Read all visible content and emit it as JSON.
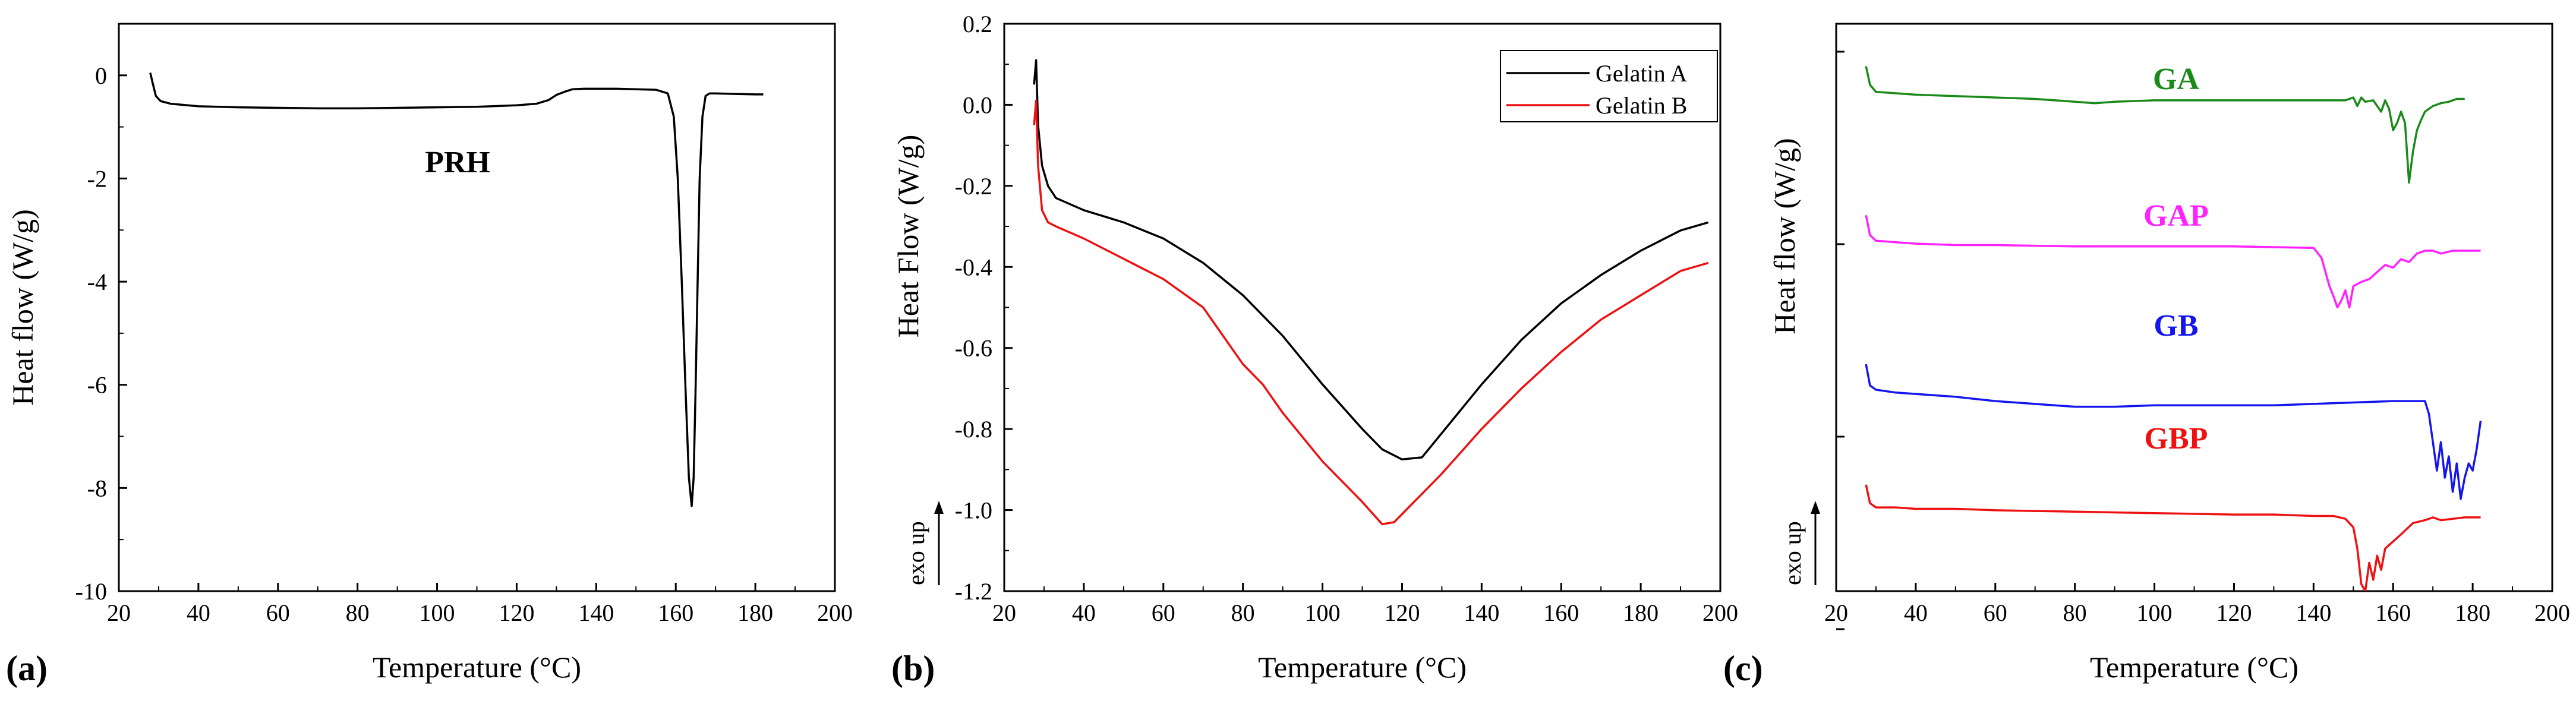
{
  "chart_data": [
    {
      "id": "a",
      "type": "line",
      "panel_label": "(a)",
      "annotation": "PRH",
      "xlabel": "Temperature (°C)",
      "ylabel": "Heat flow (W/g)",
      "xlim": [
        20,
        200
      ],
      "ylim": [
        -10,
        1
      ],
      "xticks": [
        "20",
        "40",
        "60",
        "80",
        "100",
        "120",
        "140",
        "160",
        "180",
        "200"
      ],
      "yticks": [
        "0",
        "-2",
        "-4",
        "-6",
        "-8",
        "-10"
      ],
      "series": [
        {
          "name": "PRH",
          "color": "#000000",
          "x": [
            27.9,
            28.5,
            29.3,
            30.5,
            33,
            40,
            50,
            60,
            70,
            80,
            90,
            100,
            110,
            120,
            125,
            128,
            130,
            132,
            134,
            137,
            140,
            145,
            150,
            155,
            158,
            159.5,
            160.5,
            161.5,
            162.5,
            163.3,
            164.0,
            164.5,
            165.0,
            165.5,
            166.0,
            166.7,
            167.5,
            168.5,
            170,
            175,
            180,
            182
          ],
          "y": [
            0.05,
            -0.15,
            -0.4,
            -0.5,
            -0.55,
            -0.6,
            -0.62,
            -0.63,
            -0.64,
            -0.64,
            -0.63,
            -0.62,
            -0.61,
            -0.58,
            -0.55,
            -0.48,
            -0.38,
            -0.32,
            -0.27,
            -0.26,
            -0.26,
            -0.26,
            -0.27,
            -0.28,
            -0.35,
            -0.8,
            -2.0,
            -4.0,
            -6.2,
            -7.8,
            -8.35,
            -7.8,
            -6.0,
            -4.0,
            -2.0,
            -0.8,
            -0.4,
            -0.35,
            -0.35,
            -0.36,
            -0.37,
            -0.37
          ]
        }
      ]
    },
    {
      "id": "b",
      "type": "line",
      "panel_label": "(b)",
      "xlabel": "Temperature (°C)",
      "ylabel": "Heat Flow (W/g)",
      "exo_label": "exo up",
      "xlim": [
        20,
        200
      ],
      "ylim": [
        -1.2,
        0.2
      ],
      "xticks": [
        "20",
        "40",
        "60",
        "80",
        "100",
        "120",
        "140",
        "160",
        "180",
        "200"
      ],
      "yticks": [
        "0.2",
        "0.0",
        "-0.2",
        "-0.4",
        "-0.6",
        "-0.8",
        "-1.0",
        "-1.2"
      ],
      "legend": [
        "Gelatin A",
        "Gelatin B"
      ],
      "series": [
        {
          "name": "Gelatin A",
          "color": "#000000",
          "x": [
            27.5,
            28.0,
            28.5,
            29.5,
            31,
            33,
            40,
            50,
            60,
            70,
            80,
            90,
            100,
            110,
            115,
            120,
            125,
            130,
            140,
            150,
            160,
            170,
            180,
            190,
            197
          ],
          "y": [
            0.05,
            0.11,
            -0.05,
            -0.15,
            -0.2,
            -0.23,
            -0.26,
            -0.29,
            -0.33,
            -0.39,
            -0.47,
            -0.57,
            -0.69,
            -0.8,
            -0.85,
            -0.875,
            -0.87,
            -0.81,
            -0.69,
            -0.58,
            -0.49,
            -0.42,
            -0.36,
            -0.31,
            -0.29
          ]
        },
        {
          "name": "Gelatin B",
          "color": "#ee1111",
          "x": [
            27.5,
            28.0,
            28.5,
            29.5,
            31,
            33,
            40,
            50,
            60,
            70,
            75,
            80,
            85,
            90,
            100,
            110,
            115,
            118,
            120,
            130,
            140,
            150,
            160,
            170,
            180,
            190,
            197
          ],
          "y": [
            -0.05,
            0.01,
            -0.15,
            -0.26,
            -0.29,
            -0.3,
            -0.33,
            -0.38,
            -0.43,
            -0.5,
            -0.57,
            -0.64,
            -0.69,
            -0.76,
            -0.88,
            -0.98,
            -1.035,
            -1.03,
            -1.01,
            -0.91,
            -0.8,
            -0.7,
            -0.61,
            -0.53,
            -0.47,
            -0.41,
            -0.39
          ]
        }
      ]
    },
    {
      "id": "c",
      "type": "line",
      "panel_label": "(c)",
      "xlabel": "Temperature (°C)",
      "ylabel": "Heat flow (W/g)",
      "exo_label": "exo up",
      "xlim": [
        20,
        200
      ],
      "ylim": [
        -4,
        0
      ],
      "xticks": [
        "20",
        "40",
        "60",
        "80",
        "100",
        "120",
        "140",
        "160",
        "180",
        "200"
      ],
      "yticks": [],
      "series": [
        {
          "name": "GA",
          "color": "#1a8a1a",
          "x": [
            27.5,
            28.5,
            30,
            35,
            40,
            50,
            60,
            70,
            80,
            85,
            90,
            100,
            110,
            120,
            130,
            140,
            145,
            148,
            150,
            151,
            152,
            153,
            155,
            157,
            158,
            159,
            160,
            161,
            162,
            163,
            164,
            165,
            166,
            167,
            168,
            170,
            172,
            174,
            176,
            178
          ],
          "y": [
            -0.3,
            -0.43,
            -0.48,
            -0.49,
            -0.5,
            -0.51,
            -0.52,
            -0.53,
            -0.55,
            -0.56,
            -0.55,
            -0.54,
            -0.54,
            -0.54,
            -0.54,
            -0.54,
            -0.54,
            -0.54,
            -0.52,
            -0.58,
            -0.52,
            -0.55,
            -0.54,
            -0.62,
            -0.54,
            -0.6,
            -0.75,
            -0.7,
            -0.62,
            -0.7,
            -1.12,
            -0.9,
            -0.75,
            -0.68,
            -0.62,
            -0.58,
            -0.56,
            -0.55,
            -0.53,
            -0.53
          ]
        },
        {
          "name": "GAP",
          "color": "#ff22ff",
          "x": [
            27.5,
            28.5,
            30,
            35,
            40,
            50,
            60,
            80,
            100,
            120,
            140,
            142,
            144,
            145,
            146,
            147,
            148,
            149,
            150,
            152,
            154,
            156,
            158,
            160,
            162,
            164,
            166,
            168,
            170,
            172,
            175,
            178,
            182
          ],
          "y": [
            -1.35,
            -1.49,
            -1.53,
            -1.54,
            -1.55,
            -1.56,
            -1.56,
            -1.57,
            -1.57,
            -1.57,
            -1.58,
            -1.65,
            -1.85,
            -1.92,
            -2.0,
            -1.95,
            -1.88,
            -2.0,
            -1.85,
            -1.82,
            -1.8,
            -1.75,
            -1.7,
            -1.72,
            -1.66,
            -1.68,
            -1.62,
            -1.6,
            -1.6,
            -1.62,
            -1.6,
            -1.6,
            -1.6
          ]
        },
        {
          "name": "GB",
          "color": "#1515ee",
          "x": [
            27.5,
            28.5,
            30,
            35,
            40,
            50,
            60,
            70,
            80,
            90,
            100,
            110,
            120,
            130,
            140,
            150,
            160,
            165,
            168,
            169,
            170,
            171,
            172,
            173,
            174,
            175,
            176,
            177,
            178,
            179,
            180,
            181,
            182
          ],
          "y": [
            -2.4,
            -2.55,
            -2.58,
            -2.6,
            -2.61,
            -2.63,
            -2.66,
            -2.68,
            -2.7,
            -2.7,
            -2.69,
            -2.69,
            -2.69,
            -2.69,
            -2.68,
            -2.67,
            -2.66,
            -2.66,
            -2.66,
            -2.75,
            -2.95,
            -3.15,
            -2.95,
            -3.2,
            -3.05,
            -3.3,
            -3.1,
            -3.35,
            -3.2,
            -3.1,
            -3.15,
            -3.0,
            -2.8
          ]
        },
        {
          "name": "GBP",
          "color": "#ee1111",
          "x": [
            27.5,
            28.5,
            30,
            35,
            40,
            50,
            60,
            80,
            100,
            120,
            130,
            140,
            145,
            148,
            150,
            151,
            152,
            153,
            154,
            155,
            156,
            157,
            158,
            160,
            162,
            165,
            168,
            170,
            172,
            175,
            178,
            182
          ],
          "y": [
            -3.25,
            -3.38,
            -3.41,
            -3.41,
            -3.42,
            -3.42,
            -3.43,
            -3.44,
            -3.45,
            -3.46,
            -3.46,
            -3.47,
            -3.47,
            -3.49,
            -3.55,
            -3.7,
            -3.95,
            -4.0,
            -3.8,
            -3.92,
            -3.75,
            -3.85,
            -3.7,
            -3.65,
            -3.6,
            -3.52,
            -3.5,
            -3.48,
            -3.5,
            -3.49,
            -3.48,
            -3.48
          ]
        }
      ],
      "annotations": [
        {
          "text": "GA",
          "color": "#1a8a1a"
        },
        {
          "text": "GAP",
          "color": "#ff22ff"
        },
        {
          "text": "GB",
          "color": "#1515ee"
        },
        {
          "text": "GBP",
          "color": "#ee1111"
        }
      ]
    }
  ]
}
